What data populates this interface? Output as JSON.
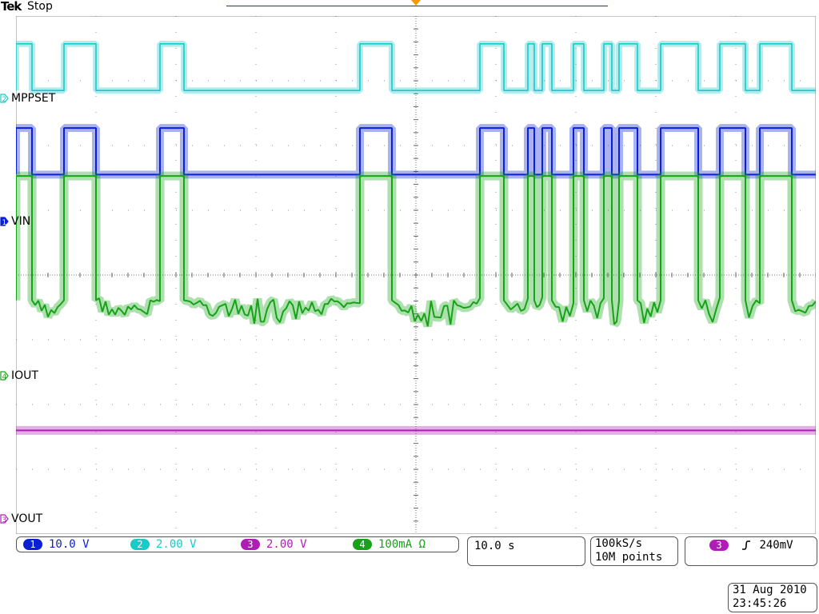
{
  "header": {
    "brand": "Tek",
    "status": "Stop"
  },
  "channels": [
    {
      "id": "1",
      "name": "VIN",
      "scale": "10.0 V",
      "color": "#0a1fd8",
      "marker_color": "#0a1fd8"
    },
    {
      "id": "2",
      "name": "MPPSET",
      "scale": "2.00 V",
      "color": "#1cc8c8",
      "marker_color": "#1cc8c8"
    },
    {
      "id": "3",
      "name": "VOUT",
      "scale": "2.00 V",
      "color": "#b01cb8",
      "marker_color": "#b01cb8"
    },
    {
      "id": "4",
      "name": "IOUT",
      "scale": "100mA Ω",
      "color": "#17a317",
      "marker_color": "#17a317"
    }
  ],
  "timebase": {
    "per_div": "10.0 s"
  },
  "acquisition": {
    "rate": "100kS/s",
    "points": "10M points"
  },
  "trigger": {
    "source": "3",
    "slope_icon": "rising-edge-icon",
    "level": "240mV"
  },
  "datetime": {
    "date": "31 Aug 2010",
    "time": "23:45:26"
  },
  "chart_data": {
    "type": "line",
    "title": "",
    "xlabel": "",
    "ylabel": "",
    "grid": true,
    "divisions": {
      "x": 10,
      "y": 8
    },
    "xlim": [
      0,
      100
    ],
    "x_unit": "s",
    "series": [
      {
        "name": "MPPSET",
        "channel": "2",
        "high": 0.4,
        "low": -0.5,
        "edges": [
          0,
          2,
          6,
          10,
          18,
          21,
          43,
          47,
          58,
          61,
          64,
          64.8,
          65.8,
          67,
          69.7,
          71,
          73.5,
          74.5,
          75.4,
          77.7,
          80.6,
          85.3,
          88,
          91.2,
          93,
          97
        ]
      },
      {
        "name": "VIN",
        "channel": "1",
        "high": 0.4,
        "low": -0.5,
        "edges": [
          0,
          2,
          6,
          10,
          18,
          21,
          43,
          47,
          58,
          61,
          64,
          64.8,
          65.8,
          67,
          69.7,
          71,
          73.5,
          74.5,
          75.4,
          77.7,
          80.6,
          85.3,
          88,
          91.2,
          93,
          97
        ]
      },
      {
        "name": "IOUT",
        "channel": "4",
        "high": 1.1,
        "low": -1.3,
        "edges": [
          0,
          2,
          6,
          10,
          18,
          21,
          43,
          47,
          58,
          61,
          64,
          64.8,
          65.8,
          67,
          69.7,
          71,
          73.5,
          74.5,
          75.4,
          77.7,
          80.6,
          85.3,
          88,
          91.2,
          93,
          97
        ]
      },
      {
        "name": "VOUT",
        "channel": "3",
        "level": -2.4
      }
    ]
  }
}
